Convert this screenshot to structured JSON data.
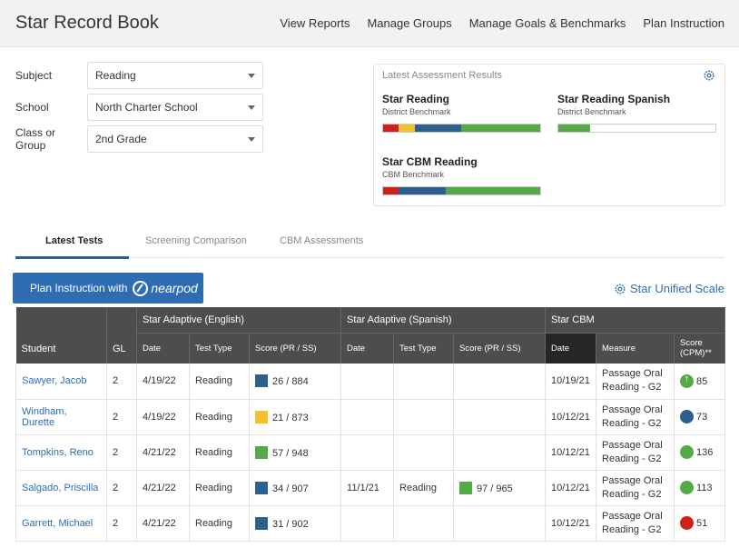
{
  "header": {
    "title": "Star Record Book",
    "nav": [
      "View Reports",
      "Manage Groups",
      "Manage Goals & Benchmarks",
      "Plan Instruction"
    ]
  },
  "filters": {
    "subject": {
      "label": "Subject",
      "value": "Reading"
    },
    "school": {
      "label": "School",
      "value": "North Charter School"
    },
    "group": {
      "label": "Class or Group",
      "value": "2nd Grade"
    }
  },
  "results": {
    "title": "Latest Assessment Results",
    "star_reading": {
      "name": "Star Reading",
      "benchmark": "District Benchmark",
      "segments": [
        {
          "color": "#d0201e",
          "pct": 10
        },
        {
          "color": "#f2c12e",
          "pct": 10
        },
        {
          "color": "#2e5f8f",
          "pct": 30
        },
        {
          "color": "#55a946",
          "pct": 50
        }
      ]
    },
    "star_reading_spanish": {
      "name": "Star Reading Spanish",
      "benchmark": "District Benchmark",
      "segments": [
        {
          "color": "#55a946",
          "pct": 20
        },
        {
          "color": "#ffffff",
          "pct": 80
        }
      ]
    },
    "star_cbm": {
      "name": "Star CBM Reading",
      "benchmark": "CBM Benchmark",
      "segments": [
        {
          "color": "#d0201e",
          "pct": 10
        },
        {
          "color": "#2e5f8f",
          "pct": 30
        },
        {
          "color": "#55a946",
          "pct": 60
        }
      ]
    }
  },
  "tabs": [
    "Latest Tests",
    "Screening Comparison",
    "CBM Assessments"
  ],
  "plan_button": {
    "label": "Plan Instruction with",
    "brand": "nearpod"
  },
  "unified_scale": "Star Unified Scale",
  "table": {
    "group_headers": {
      "student": "Student",
      "gl": "GL",
      "adaptive_english": "Star Adaptive (English)",
      "adaptive_spanish": "Star Adaptive (Spanish)",
      "cbm": "Star CBM"
    },
    "sub_headers": {
      "date": "Date",
      "test_type": "Test Type",
      "score": "Score (PR / SS)",
      "measure": "Measure",
      "cpm": "Score (CPM)**"
    },
    "rows": [
      {
        "student": "Sawyer, Jacob",
        "gl": "2",
        "en_date": "4/19/22",
        "en_type": "Reading",
        "en_color": "#2e5f8f",
        "en_score": "26 / 884",
        "es_date": "",
        "es_type": "",
        "es_color": "",
        "es_score": "",
        "cbm_date": "10/19/21",
        "measure": "Passage Oral Reading - G2",
        "cpm_color": "#55a946",
        "cpm_icon": "up-arrow-icon",
        "cpm": "85"
      },
      {
        "student": "Windham, Durette",
        "gl": "2",
        "en_date": "4/19/22",
        "en_type": "Reading",
        "en_color": "#f2c12e",
        "en_score": "21 / 873",
        "es_date": "",
        "es_type": "",
        "es_color": "",
        "es_score": "",
        "cbm_date": "10/12/21",
        "measure": "Passage Oral Reading - G2",
        "cpm_color": "#2e5f8f",
        "cpm_icon": "",
        "cpm": "73"
      },
      {
        "student": "Tompkins, Reno",
        "gl": "2",
        "en_date": "4/21/22",
        "en_type": "Reading",
        "en_color": "#55a946",
        "en_score": "57 / 948",
        "es_date": "",
        "es_type": "",
        "es_color": "",
        "es_score": "",
        "cbm_date": "10/12/21",
        "measure": "Passage Oral Reading - G2",
        "cpm_color": "#55a946",
        "cpm_icon": "",
        "cpm": "136"
      },
      {
        "student": "Salgado, Priscilla",
        "gl": "2",
        "en_date": "4/21/22",
        "en_type": "Reading",
        "en_color": "#2e5f8f",
        "en_score": "34 / 907",
        "es_date": "11/1/21",
        "es_type": "Reading",
        "es_color": "#55a946",
        "es_score": "97 / 965",
        "cbm_date": "10/12/21",
        "measure": "Passage Oral Reading - G2",
        "cpm_color": "#55a946",
        "cpm_icon": "",
        "cpm": "113"
      },
      {
        "student": "Garrett, Michael",
        "gl": "2",
        "en_date": "4/21/22",
        "en_type": "Reading",
        "en_color": "#2e5f8f",
        "en_score": "31 / 902",
        "es_date": "",
        "es_type": "",
        "es_color": "",
        "es_score": "",
        "cbm_date": "10/12/21",
        "measure": "Passage Oral Reading - G2",
        "cpm_color": "#d0201e",
        "cpm_icon": "",
        "cpm": "51"
      }
    ]
  }
}
